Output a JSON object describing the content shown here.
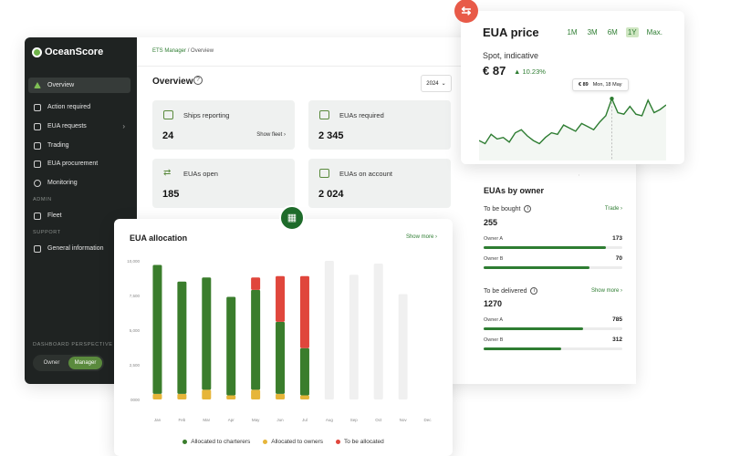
{
  "brand": {
    "name": "OceanScore"
  },
  "sidebar": {
    "items": [
      {
        "label": "Overview"
      },
      {
        "label": "Action required"
      },
      {
        "label": "EUA requests"
      },
      {
        "label": "Trading"
      },
      {
        "label": "EUA procurement"
      },
      {
        "label": "Monitoring"
      },
      {
        "label": "Fleet"
      },
      {
        "label": "General information"
      }
    ],
    "section_admin": "ADMIN",
    "section_support": "SUPPORT",
    "perspective_label": "DASHBOARD PERSPECTIVE",
    "perspective_options": [
      "Owner",
      "Manager"
    ],
    "perspective_selected": "Manager"
  },
  "breadcrumb": {
    "root": "ETS Manager",
    "separator": "/",
    "current": "Overview"
  },
  "page": {
    "title": "Overview",
    "help": "?",
    "year": "2024",
    "year_chevron": "⌄"
  },
  "cards": [
    {
      "label": "Ships reporting",
      "value": "24",
      "link": "Show fleet"
    },
    {
      "label": "EUAs required",
      "value": "2 345",
      "link": ""
    },
    {
      "label": "EUAs open",
      "value": "185",
      "link": ""
    },
    {
      "label": "EUAs on account",
      "value": "2 024",
      "link": ""
    }
  ],
  "price": {
    "title": "EUA price",
    "ranges": [
      "1M",
      "3M",
      "6M",
      "1Y",
      "Max."
    ],
    "selected_range": "1Y",
    "spot_label": "Spot, indicative",
    "spot_value": "€ 87",
    "change": "▲ 10.23%",
    "tooltip_value": "€ 89",
    "tooltip_date": "Mon, 18 May",
    "series": [
      62,
      60,
      66,
      63,
      64,
      61,
      67,
      69,
      65,
      62,
      60,
      64,
      67,
      66,
      72,
      70,
      68,
      73,
      71,
      69,
      74,
      78,
      89,
      80,
      79,
      84,
      79,
      78,
      88,
      80,
      82,
      85
    ],
    "line_color": "#2e7d32",
    "swap_icon": "⇆"
  },
  "owners": {
    "title": "EUAs by owner",
    "to_be_bought": {
      "label": "To be bought",
      "info": "i",
      "link": "Trade",
      "total": "255",
      "rows": [
        {
          "name": "Owner A",
          "value": "173",
          "fraction": 0.88
        },
        {
          "name": "Owner B",
          "value": "70",
          "fraction": 0.76
        }
      ]
    },
    "to_be_delivered": {
      "label": "To be delivered",
      "info": "i",
      "link": "Show more",
      "total": "1270",
      "rows": [
        {
          "name": "Owner A",
          "value": "785",
          "fraction": 0.72
        },
        {
          "name": "Owner B",
          "value": "312",
          "fraction": 0.56
        }
      ]
    }
  },
  "allocation": {
    "title": "EUA allocation",
    "link": "Show more",
    "calendar_icon": "▦",
    "legend": [
      {
        "label": "Allocated to charterers",
        "color": "#3a7d2c"
      },
      {
        "label": "Allocated to owners",
        "color": "#e6b53a"
      },
      {
        "label": "To be allocated",
        "color": "#e0463c"
      }
    ]
  },
  "chart_data": {
    "type": "bar",
    "title": "EUA allocation",
    "categories": [
      "Jan",
      "Feb",
      "Mar",
      "Apr",
      "May",
      "Jun",
      "Jul",
      "Aug",
      "Sep",
      "Oct",
      "Nov",
      "Dec"
    ],
    "yticks": [
      "10,000",
      "7,500",
      "5,000",
      "2,500",
      "0000"
    ],
    "ylim": [
      0,
      10000
    ],
    "series": [
      {
        "name": "Allocated to owners",
        "color": "#e6b53a",
        "values": [
          400,
          400,
          700,
          300,
          700,
          400,
          300,
          0,
          0,
          0,
          0,
          0
        ]
      },
      {
        "name": "Allocated to charterers",
        "color": "#3a7d2c",
        "values": [
          9300,
          8100,
          8100,
          7100,
          7200,
          5200,
          3400,
          0,
          0,
          0,
          0,
          0
        ]
      },
      {
        "name": "To be allocated",
        "color": "#e0463c",
        "values": [
          0,
          0,
          0,
          0,
          900,
          3300,
          5200,
          0,
          0,
          0,
          0,
          0
        ]
      },
      {
        "name": "Remaining",
        "color": "#f0f0f0",
        "values": [
          0,
          0,
          0,
          0,
          0,
          0,
          0,
          10000,
          9000,
          9800,
          7600,
          0
        ]
      }
    ],
    "grid": false,
    "legend_position": "bottom"
  }
}
